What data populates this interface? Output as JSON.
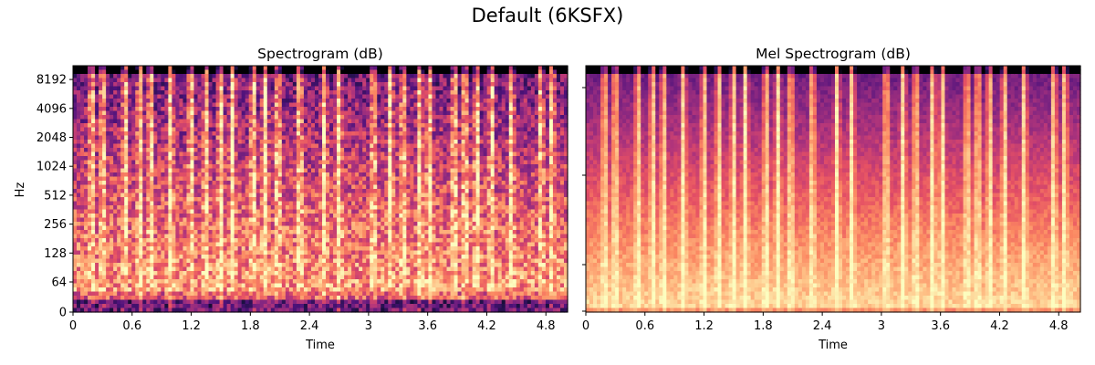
{
  "figure": {
    "title": "Default (6KSFX)"
  },
  "chart_data": [
    {
      "type": "heatmap",
      "title": "Spectrogram (dB)",
      "xlabel": "Time",
      "ylabel": "Hz",
      "x_ticks": [
        "0",
        "0.6",
        "1.2",
        "1.8",
        "2.4",
        "3",
        "3.6",
        "4.2",
        "4.8"
      ],
      "y_ticks": [
        "0",
        "64",
        "128",
        "256",
        "512",
        "1024",
        "2048",
        "4096",
        "8192"
      ],
      "y_scale": "log",
      "xlim": [
        0,
        5.02
      ],
      "colormap": "magma",
      "y_axis_labels_shown": true,
      "transient_times": [
        0.19,
        0.3,
        0.53,
        0.68,
        0.79,
        0.99,
        1.2,
        1.35,
        1.5,
        1.62,
        1.83,
        1.95,
        2.08,
        2.3,
        2.55,
        2.7,
        3.05,
        3.22,
        3.35,
        3.52,
        3.62,
        3.87,
        3.98,
        4.1,
        4.25,
        4.45,
        4.75,
        4.86
      ]
    },
    {
      "type": "heatmap",
      "title": "Mel Spectrogram (dB)",
      "xlabel": "Time",
      "ylabel": "",
      "x_ticks": [
        "0",
        "0.6",
        "1.2",
        "1.8",
        "2.4",
        "3",
        "3.6",
        "4.2",
        "4.8"
      ],
      "y_scale": "mel",
      "xlim": [
        0,
        5.02
      ],
      "colormap": "magma",
      "y_axis_labels_shown": false,
      "transient_times": [
        0.19,
        0.3,
        0.53,
        0.68,
        0.79,
        0.99,
        1.2,
        1.35,
        1.5,
        1.62,
        1.83,
        1.95,
        2.08,
        2.3,
        2.55,
        2.7,
        3.05,
        3.22,
        3.35,
        3.52,
        3.62,
        3.87,
        3.98,
        4.1,
        4.25,
        4.45,
        4.75,
        4.86
      ]
    }
  ]
}
